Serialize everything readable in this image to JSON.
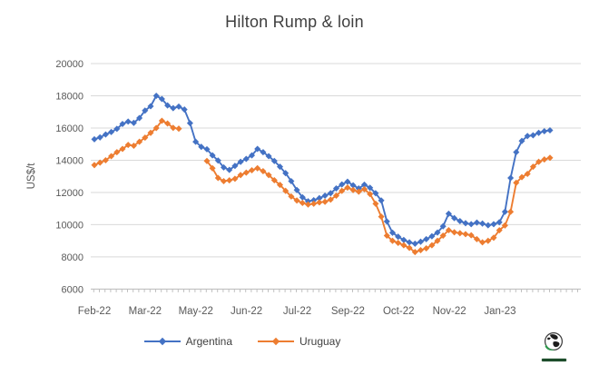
{
  "title": "Hilton Rump & loin",
  "y_axis": {
    "title": "US$/t",
    "tick_labels": [
      "20000",
      "18000",
      "16000",
      "14000",
      "12000",
      "10000",
      "8000",
      "6000"
    ]
  },
  "x_axis": {
    "tick_labels": [
      "Feb-22",
      "Mar-22",
      "May-22",
      "Jun-22",
      "Jul-22",
      "Sep-22",
      "Oct-22",
      "Nov-22",
      "Jan-23"
    ]
  },
  "legend": {
    "items": [
      {
        "label": "Argentina",
        "color": "#4472C4"
      },
      {
        "label": "Uruguay",
        "color": "#ED7D31"
      }
    ]
  },
  "icons": {
    "logo": "globe-icon"
  },
  "colors": {
    "argentina": "#4472C4",
    "uruguay": "#ED7D31",
    "gridline": "#D9D9D9",
    "axis": "#BFBFBF",
    "axis_text": "#595959",
    "title_text": "#3F3F3F"
  },
  "chart_data": {
    "type": "line",
    "title": "Hilton Rump & loin",
    "xlabel": "",
    "ylabel": "US$/t",
    "ylim": [
      6000,
      20000
    ],
    "y_ticks": [
      20000,
      18000,
      16000,
      14000,
      12000,
      10000,
      8000,
      6000
    ],
    "x_tick_labels": [
      "Feb-22",
      "Mar-22",
      "May-22",
      "Jun-22",
      "Jul-22",
      "Sep-22",
      "Oct-22",
      "Nov-22",
      "Jan-23"
    ],
    "x_tick_label_interval_points": 9,
    "grid": "horizontal",
    "legend_position": "bottom",
    "marker": "diamond",
    "note": "weekly price series; Uruguay has a data gap of 4 points after point 15",
    "series": [
      {
        "name": "Argentina",
        "color": "#4472C4",
        "values": [
          15300,
          15420,
          15600,
          15750,
          15950,
          16250,
          16400,
          16320,
          16620,
          17080,
          17350,
          18000,
          17800,
          17400,
          17230,
          17330,
          17150,
          16300,
          15150,
          14830,
          14680,
          14300,
          13980,
          13550,
          13400,
          13650,
          13900,
          14080,
          14300,
          14700,
          14500,
          14250,
          13950,
          13600,
          13200,
          12700,
          12150,
          11700,
          11450,
          11520,
          11650,
          11800,
          11950,
          12250,
          12500,
          12670,
          12440,
          12250,
          12480,
          12290,
          11950,
          11500,
          10200,
          9500,
          9250,
          9050,
          8900,
          8820,
          8940,
          9100,
          9280,
          9510,
          9900,
          10680,
          10410,
          10220,
          10090,
          10030,
          10130,
          10070,
          9960,
          10030,
          10150,
          10800,
          12900,
          14500,
          15200,
          15500,
          15550,
          15700,
          15800,
          15860
        ]
      },
      {
        "name": "Uruguay",
        "color": "#ED7D31",
        "values": [
          13700,
          13850,
          14000,
          14250,
          14500,
          14700,
          14950,
          14900,
          15150,
          15400,
          15700,
          16000,
          16450,
          16280,
          16010,
          15960,
          null,
          null,
          null,
          null,
          13950,
          13500,
          12900,
          12700,
          12750,
          12850,
          13080,
          13230,
          13380,
          13500,
          13320,
          13080,
          12760,
          12470,
          12100,
          11750,
          11500,
          11350,
          11250,
          11300,
          11380,
          11420,
          11550,
          11800,
          12100,
          12300,
          12150,
          12050,
          12200,
          11900,
          11300,
          10500,
          9320,
          9000,
          8870,
          8720,
          8560,
          8300,
          8420,
          8530,
          8720,
          9000,
          9320,
          9660,
          9530,
          9470,
          9410,
          9340,
          9100,
          8900,
          9000,
          9190,
          9650,
          9950,
          10800,
          12600,
          12950,
          13150,
          13600,
          13900,
          14050,
          14150
        ]
      }
    ]
  }
}
